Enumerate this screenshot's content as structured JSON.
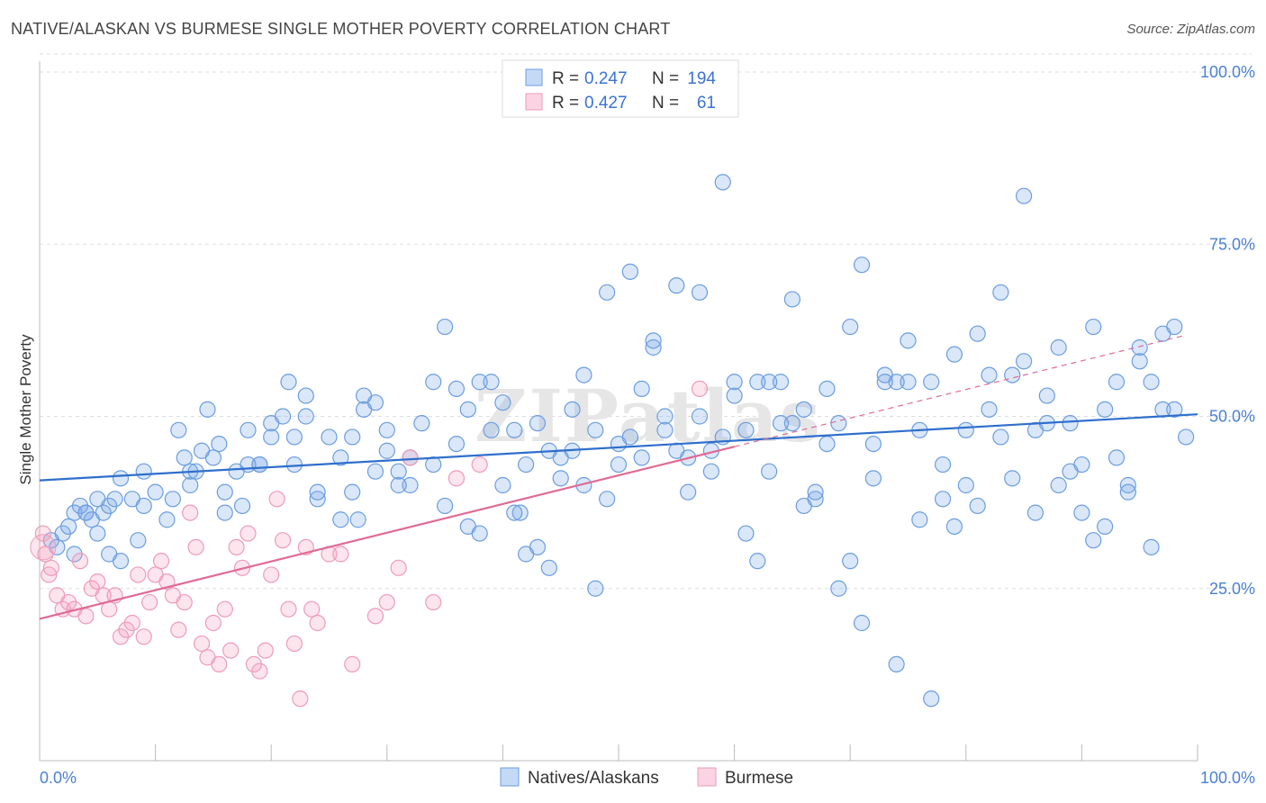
{
  "title": "NATIVE/ALASKAN VS BURMESE SINGLE MOTHER POVERTY CORRELATION CHART",
  "source": "Source: ZipAtlas.com",
  "watermark": "ZIPatlas",
  "colors": {
    "natives_fill": "rgba(122,170,232,0.28)",
    "natives_stroke": "#6b9de0",
    "natives_line": "#2f6fcc",
    "burmese_fill": "rgba(244,160,190,0.28)",
    "burmese_stroke": "#ee9bb8",
    "burmese_line": "#e06a95",
    "tick": "#4a7fd4",
    "grid": "#dddddd"
  },
  "legend": {
    "r_label": "R =",
    "n_label": "N =",
    "rows": [
      {
        "r": "0.247",
        "n": "194"
      },
      {
        "r": "0.427",
        "n": "61"
      }
    ]
  },
  "chart_data": {
    "type": "scatter",
    "title": "NATIVE/ALASKAN VS BURMESE SINGLE MOTHER POVERTY CORRELATION CHART",
    "xlabel": "",
    "ylabel": "Single Mother Poverty",
    "xlim": [
      0,
      100
    ],
    "ylim": [
      0,
      105
    ],
    "x_tick_labels": [
      "0.0%",
      "100.0%"
    ],
    "y_ticks": [
      25,
      50,
      75,
      100
    ],
    "y_tick_labels": [
      "25.0%",
      "50.0%",
      "75.0%",
      "100.0%"
    ],
    "grid": true,
    "legend_position": "top-center",
    "series": [
      {
        "name": "Natives/Alaskans",
        "r": 0.247,
        "n": 194,
        "trend": {
          "x": [
            0,
            100
          ],
          "y": [
            40.7,
            50.3
          ]
        },
        "points": [
          [
            1,
            32
          ],
          [
            1.5,
            31
          ],
          [
            2,
            33
          ],
          [
            2.5,
            34
          ],
          [
            3,
            36
          ],
          [
            3.5,
            37
          ],
          [
            4,
            36
          ],
          [
            4.5,
            35
          ],
          [
            5,
            38
          ],
          [
            5.5,
            36
          ],
          [
            6,
            37
          ],
          [
            6.5,
            38
          ],
          [
            7,
            41
          ],
          [
            8,
            38
          ],
          [
            8.5,
            32
          ],
          [
            9,
            37
          ],
          [
            10,
            39
          ],
          [
            11,
            35
          ],
          [
            11.5,
            38
          ],
          [
            12,
            48
          ],
          [
            12.5,
            44
          ],
          [
            13,
            40
          ],
          [
            13.5,
            42
          ],
          [
            14,
            45
          ],
          [
            14.5,
            51
          ],
          [
            15,
            44
          ],
          [
            15.5,
            46
          ],
          [
            16,
            36
          ],
          [
            17,
            42
          ],
          [
            17.5,
            37
          ],
          [
            18,
            48
          ],
          [
            19,
            43
          ],
          [
            20,
            49
          ],
          [
            21,
            50
          ],
          [
            21.5,
            55
          ],
          [
            22,
            47
          ],
          [
            23,
            53
          ],
          [
            24,
            38
          ],
          [
            25,
            47
          ],
          [
            26,
            44
          ],
          [
            27,
            39
          ],
          [
            27.5,
            35
          ],
          [
            28,
            53
          ],
          [
            29,
            52
          ],
          [
            30,
            48
          ],
          [
            31,
            42
          ],
          [
            32,
            40
          ],
          [
            33,
            49
          ],
          [
            34,
            55
          ],
          [
            35,
            63
          ],
          [
            36,
            46
          ],
          [
            37,
            34
          ],
          [
            38,
            55
          ],
          [
            39,
            48
          ],
          [
            40,
            40
          ],
          [
            41,
            48
          ],
          [
            41.5,
            36
          ],
          [
            42,
            43
          ],
          [
            43,
            31
          ],
          [
            44,
            28
          ],
          [
            45,
            41
          ],
          [
            46,
            51
          ],
          [
            47,
            40
          ],
          [
            48,
            25
          ],
          [
            49,
            38
          ],
          [
            50,
            46
          ],
          [
            51,
            47
          ],
          [
            52,
            54
          ],
          [
            53,
            60
          ],
          [
            54,
            50
          ],
          [
            55,
            45
          ],
          [
            56,
            39
          ],
          [
            57,
            50
          ],
          [
            58,
            42
          ],
          [
            59,
            47
          ],
          [
            60,
            53
          ],
          [
            61,
            33
          ],
          [
            62,
            29
          ],
          [
            63,
            42
          ],
          [
            64,
            55
          ],
          [
            65,
            49
          ],
          [
            66,
            37
          ],
          [
            67,
            38
          ],
          [
            68,
            54
          ],
          [
            69,
            25
          ],
          [
            70,
            29
          ],
          [
            71,
            20
          ],
          [
            72,
            41
          ],
          [
            73,
            56
          ],
          [
            74,
            14
          ],
          [
            75,
            55
          ],
          [
            76,
            35
          ],
          [
            77,
            9
          ],
          [
            78,
            38
          ],
          [
            79,
            34
          ],
          [
            80,
            40
          ],
          [
            81,
            37
          ],
          [
            82,
            56
          ],
          [
            83,
            47
          ],
          [
            84,
            41
          ],
          [
            85,
            58
          ],
          [
            86,
            36
          ],
          [
            87,
            49
          ],
          [
            88,
            40
          ],
          [
            89,
            42
          ],
          [
            90,
            36
          ],
          [
            91,
            32
          ],
          [
            92,
            34
          ],
          [
            93,
            44
          ],
          [
            94,
            40
          ],
          [
            95,
            60
          ],
          [
            96,
            31
          ],
          [
            97,
            51
          ],
          [
            98,
            63
          ],
          [
            99,
            47
          ],
          [
            3,
            30
          ],
          [
            4,
            36
          ],
          [
            5,
            33
          ],
          [
            6,
            30
          ],
          [
            7,
            29
          ],
          [
            9,
            42
          ],
          [
            13,
            42
          ],
          [
            16,
            39
          ],
          [
            19,
            43
          ],
          [
            22,
            43
          ],
          [
            24,
            39
          ],
          [
            26,
            35
          ],
          [
            28,
            51
          ],
          [
            30,
            45
          ],
          [
            32,
            44
          ],
          [
            34,
            43
          ],
          [
            36,
            54
          ],
          [
            38,
            33
          ],
          [
            40,
            52
          ],
          [
            42,
            30
          ],
          [
            44,
            45
          ],
          [
            46,
            45
          ],
          [
            48,
            48
          ],
          [
            50,
            43
          ],
          [
            52,
            44
          ],
          [
            54,
            48
          ],
          [
            56,
            44
          ],
          [
            58,
            45
          ],
          [
            60,
            55
          ],
          [
            62,
            55
          ],
          [
            64,
            49
          ],
          [
            66,
            51
          ],
          [
            68,
            46
          ],
          [
            70,
            63
          ],
          [
            72,
            46
          ],
          [
            74,
            55
          ],
          [
            76,
            48
          ],
          [
            78,
            43
          ],
          [
            80,
            48
          ],
          [
            82,
            51
          ],
          [
            84,
            56
          ],
          [
            86,
            48
          ],
          [
            88,
            60
          ],
          [
            90,
            43
          ],
          [
            92,
            51
          ],
          [
            94,
            39
          ],
          [
            96,
            55
          ],
          [
            98,
            51
          ],
          [
            18,
            43
          ],
          [
            20,
            47
          ],
          [
            23,
            50
          ],
          [
            27,
            47
          ],
          [
            29,
            42
          ],
          [
            31,
            40
          ],
          [
            35,
            37
          ],
          [
            37,
            51
          ],
          [
            39,
            55
          ],
          [
            41,
            36
          ],
          [
            43,
            49
          ],
          [
            45,
            44
          ],
          [
            47,
            56
          ],
          [
            49,
            68
          ],
          [
            51,
            71
          ],
          [
            53,
            61
          ],
          [
            55,
            69
          ],
          [
            57,
            68
          ],
          [
            59,
            84
          ],
          [
            61,
            48
          ],
          [
            63,
            55
          ],
          [
            65,
            67
          ],
          [
            67,
            39
          ],
          [
            69,
            49
          ],
          [
            71,
            72
          ],
          [
            73,
            55
          ],
          [
            75,
            61
          ],
          [
            77,
            55
          ],
          [
            79,
            59
          ],
          [
            81,
            62
          ],
          [
            83,
            68
          ],
          [
            85,
            82
          ],
          [
            87,
            53
          ],
          [
            89,
            49
          ],
          [
            91,
            63
          ],
          [
            93,
            55
          ],
          [
            95,
            58
          ],
          [
            97,
            62
          ]
        ]
      },
      {
        "name": "Burmese",
        "r": 0.427,
        "n": 61,
        "trend": {
          "x": [
            0,
            60
          ],
          "y": [
            20.6,
            45.6
          ]
        },
        "trend_dashed": {
          "x": [
            60,
            99
          ],
          "y": [
            45.6,
            61.8
          ]
        },
        "points": [
          [
            0.3,
            33
          ],
          [
            0.5,
            30
          ],
          [
            0.8,
            27
          ],
          [
            1,
            28
          ],
          [
            1.5,
            24
          ],
          [
            2,
            22
          ],
          [
            2.5,
            23
          ],
          [
            3,
            22
          ],
          [
            3.5,
            29
          ],
          [
            4,
            21
          ],
          [
            4.5,
            25
          ],
          [
            5,
            26
          ],
          [
            5.5,
            24
          ],
          [
            6,
            22
          ],
          [
            6.5,
            24
          ],
          [
            7,
            18
          ],
          [
            7.5,
            19
          ],
          [
            8,
            20
          ],
          [
            8.5,
            27
          ],
          [
            9,
            18
          ],
          [
            9.5,
            23
          ],
          [
            10,
            27
          ],
          [
            10.5,
            29
          ],
          [
            11,
            26
          ],
          [
            11.5,
            24
          ],
          [
            12,
            19
          ],
          [
            12.5,
            23
          ],
          [
            13,
            36
          ],
          [
            13.5,
            31
          ],
          [
            14,
            17
          ],
          [
            14.5,
            15
          ],
          [
            15,
            20
          ],
          [
            15.5,
            14
          ],
          [
            16,
            22
          ],
          [
            16.5,
            16
          ],
          [
            17,
            31
          ],
          [
            17.5,
            28
          ],
          [
            18,
            33
          ],
          [
            18.5,
            14
          ],
          [
            19,
            13
          ],
          [
            19.5,
            16
          ],
          [
            20,
            27
          ],
          [
            20.5,
            38
          ],
          [
            21,
            32
          ],
          [
            21.5,
            22
          ],
          [
            22,
            17
          ],
          [
            22.5,
            9
          ],
          [
            23,
            31
          ],
          [
            23.5,
            22
          ],
          [
            24,
            20
          ],
          [
            26,
            30
          ],
          [
            27,
            14
          ],
          [
            29,
            21
          ],
          [
            30,
            23
          ],
          [
            31,
            28
          ],
          [
            32,
            44
          ],
          [
            34,
            23
          ],
          [
            36,
            41
          ],
          [
            38,
            43
          ],
          [
            57,
            54
          ],
          [
            25,
            30
          ]
        ]
      }
    ]
  }
}
